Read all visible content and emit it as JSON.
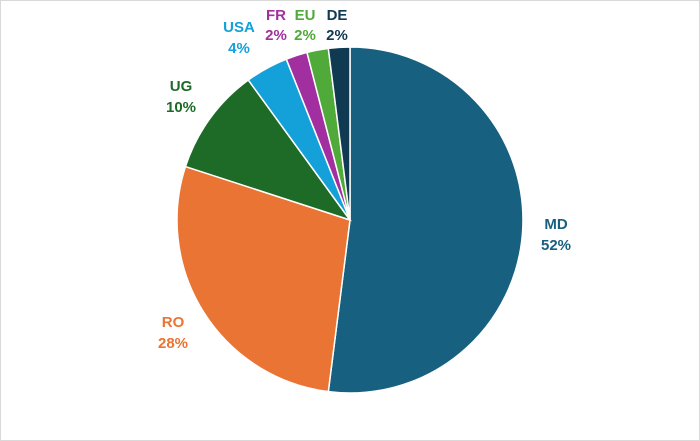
{
  "chart_data": {
    "type": "pie",
    "title": "",
    "start_angle_deg": 0,
    "direction": "clockwise",
    "slices": [
      {
        "label": "MD",
        "value": 52,
        "display": "52%",
        "color": "#17607f"
      },
      {
        "label": "RO",
        "value": 28,
        "display": "28%",
        "color": "#ea7433"
      },
      {
        "label": "UG",
        "value": 10,
        "display": "10%",
        "color": "#1d6b27"
      },
      {
        "label": "USA",
        "value": 4,
        "display": "4%",
        "color": "#14a0d8"
      },
      {
        "label": "FR",
        "value": 2,
        "display": "2%",
        "color": "#a22f9f"
      },
      {
        "label": "EU",
        "value": 2,
        "display": "2%",
        "color": "#4faa3a"
      },
      {
        "label": "DE",
        "value": 2,
        "display": "2%",
        "color": "#0f3a52"
      }
    ]
  }
}
